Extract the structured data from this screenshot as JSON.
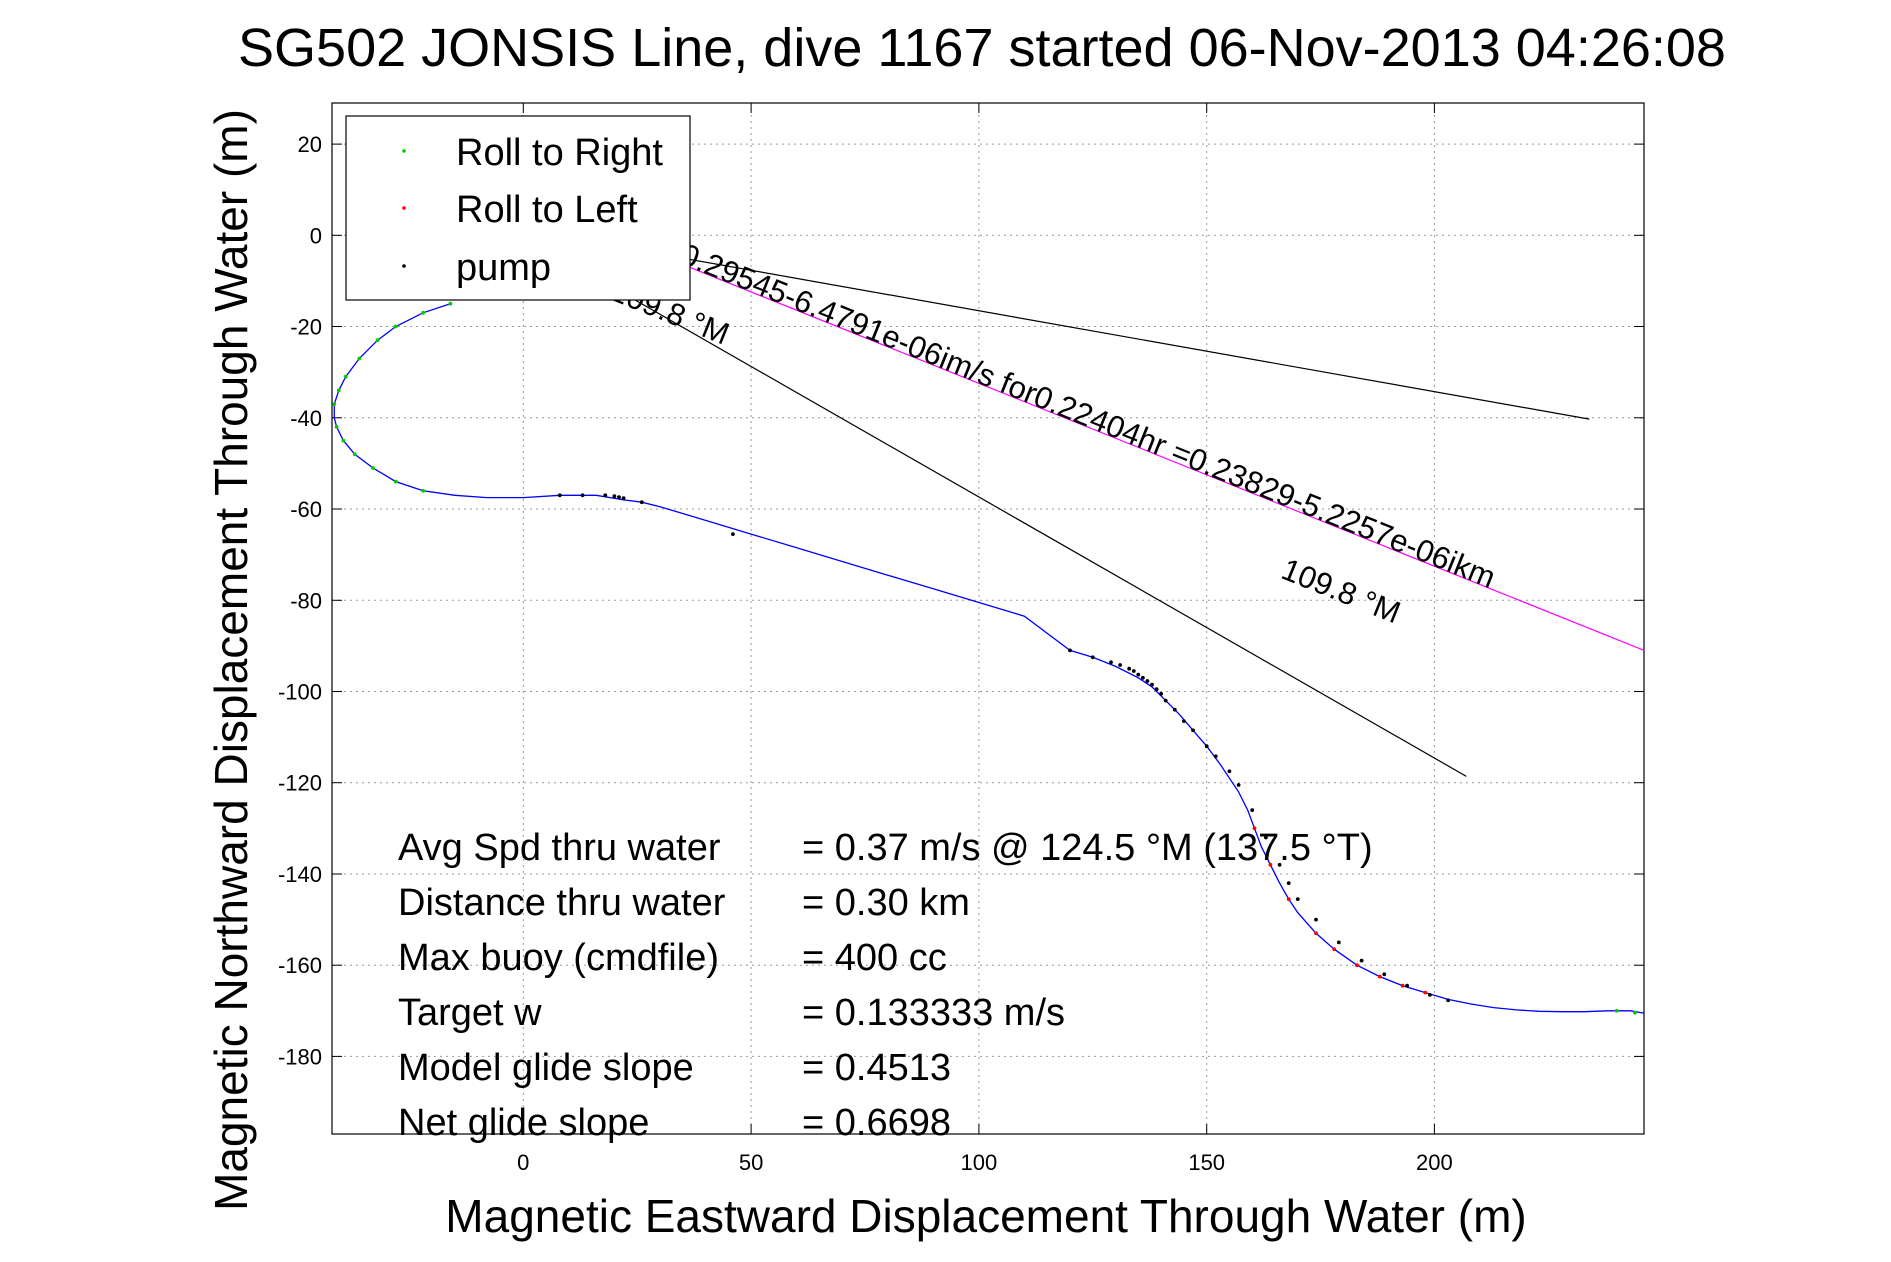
{
  "chart_data": {
    "type": "scatter",
    "title": "SG502 JONSIS Line, dive 1167 started 06-Nov-2013 04:26:08",
    "xlabel": "Magnetic Eastward Displacement Through Water (m)",
    "ylabel": "Magnetic Northward Displacement Through Water (m)",
    "xlim": [
      -42,
      246
    ],
    "ylim": [
      -197,
      29
    ],
    "xticks": [
      0,
      50,
      100,
      150,
      200
    ],
    "xtick_labels": [
      "0",
      "50",
      "100",
      "150",
      "200"
    ],
    "yticks": [
      20,
      0,
      -20,
      -40,
      -60,
      -80,
      -100,
      -120,
      -140,
      -160,
      -180
    ],
    "ytick_labels": [
      "20",
      "0",
      "-20",
      "-40",
      "-60",
      "-80",
      "-100",
      "-120",
      "-140",
      "-160",
      "-180"
    ],
    "grid": true,
    "legend_position": "top-left",
    "legend": [
      {
        "label": "Roll to Right",
        "color": "#00cc00"
      },
      {
        "label": "Roll to Left",
        "color": "#ff0000"
      },
      {
        "label": "pump",
        "color": "#000000"
      }
    ],
    "track": {
      "color": "#0000ff",
      "x": [
        -16,
        -22,
        -28,
        -32,
        -36,
        -39,
        -40.5,
        -41.5,
        -41.5,
        -41,
        -39.5,
        -37,
        -33,
        -28,
        -22,
        -15,
        -8,
        0,
        8,
        16,
        22,
        26,
        30,
        40,
        50,
        60,
        70,
        80,
        90,
        100,
        110,
        120,
        125,
        130,
        135,
        138,
        141,
        144,
        147,
        150,
        153,
        155,
        157,
        159,
        160.5,
        162,
        164,
        166,
        168,
        170,
        174,
        178,
        183,
        188,
        193,
        198,
        203,
        208,
        213,
        218,
        223,
        228,
        233,
        238,
        243,
        246
      ],
      "y": [
        -15,
        -17,
        -20,
        -23,
        -27,
        -31,
        -34,
        -37,
        -40,
        -42,
        -45,
        -48,
        -51,
        -54,
        -56,
        -57,
        -57.5,
        -57.5,
        -57,
        -57,
        -58,
        -58.5,
        -59.5,
        -62.5,
        -65.5,
        -68.5,
        -71.5,
        -74.5,
        -77.5,
        -80.5,
        -83.5,
        -91,
        -92.5,
        -94.5,
        -97,
        -99,
        -102,
        -105,
        -108.5,
        -112,
        -116,
        -119,
        -122,
        -126,
        -130,
        -134,
        -138,
        -142,
        -145.5,
        -148.5,
        -153,
        -156.5,
        -160,
        -162.5,
        -164.5,
        -166,
        -167.5,
        -168.5,
        -169.3,
        -169.8,
        -170.1,
        -170.2,
        -170.2,
        -170,
        -170,
        -170.5
      ]
    },
    "series": [
      {
        "name": "Roll to Right",
        "color": "#00cc00",
        "x": [
          -16,
          -22,
          -28,
          -32,
          -36,
          -39,
          -40.5,
          -41.5,
          -41,
          -39.5,
          -37,
          -33,
          -28,
          -22,
          240,
          244
        ],
        "y": [
          -15,
          -17,
          -20,
          -23,
          -27,
          -31,
          -34,
          -37,
          -42,
          -45,
          -48,
          -51,
          -54,
          -56,
          -170,
          -170.4
        ]
      },
      {
        "name": "Roll to Left",
        "color": "#ff0000",
        "x": [
          160.5,
          164,
          168,
          174,
          178,
          183,
          188,
          193,
          198
        ],
        "y": [
          -130,
          -138,
          -145.5,
          -153,
          -156.5,
          -160,
          -162.5,
          -164.5,
          -166
        ]
      },
      {
        "name": "pump",
        "color": "#000000",
        "x": [
          8,
          13,
          18,
          20,
          21,
          22,
          26,
          46,
          120,
          125,
          129,
          131,
          133,
          134,
          135,
          136,
          137,
          138,
          139,
          140,
          141,
          143,
          145,
          147,
          150,
          152,
          155,
          157,
          160,
          163,
          166,
          168,
          170,
          174,
          179,
          184,
          189,
          194,
          199,
          203
        ],
        "y": [
          -57,
          -57,
          -57,
          -57.2,
          -57.4,
          -57.6,
          -58.5,
          -65.5,
          -91,
          -92.5,
          -93.6,
          -94.2,
          -95,
          -95.5,
          -96.3,
          -97,
          -97.7,
          -98.5,
          -99.5,
          -100.5,
          -102,
          -104,
          -106.5,
          -108.5,
          -112,
          -114.2,
          -117.5,
          -120.5,
          -126,
          -132,
          -138,
          -142,
          -145.5,
          -150,
          -155,
          -159,
          -162,
          -164.5,
          -166.5,
          -167.7
        ]
      }
    ],
    "lines": [
      {
        "color": "#000000",
        "x": [
          18,
          234
        ],
        "y": [
          -2,
          -40.3
        ]
      },
      {
        "color": "#000000",
        "x": [
          12,
          207
        ],
        "y": [
          -7,
          -118.6
        ]
      },
      {
        "color": "#ff00ff",
        "x": [
          34,
          266
        ],
        "y": [
          -6,
          -99
        ]
      }
    ],
    "annotations": {
      "upper_line_label": "0.29545-6.4791e-06im/s for0.22404hr =0.23829-5.2257e-06ikm",
      "lower_line_label": "109.8 °M",
      "upper_heading_label": "109.8 °M"
    },
    "stats": [
      {
        "label": "Avg Spd thru water",
        "value": "=  0.37 m/s @ 124.5 °M (137.5 °T)"
      },
      {
        "label": "Distance thru water",
        "value": "=  0.30 km"
      },
      {
        "label": "Max buoy (cmdfile)",
        "value": "= 400 cc"
      },
      {
        "label": "Target w",
        "value": "= 0.133333 m/s"
      },
      {
        "label": "Model glide slope",
        "value": "= 0.4513"
      },
      {
        "label": "Net glide slope",
        "value": "= 0.6698"
      }
    ]
  }
}
